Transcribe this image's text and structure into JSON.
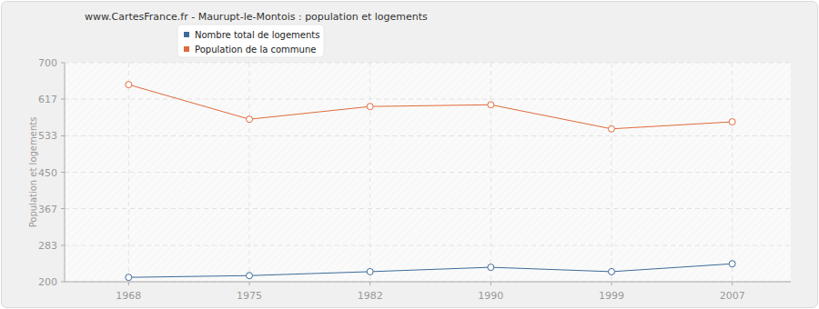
{
  "chart_data": {
    "type": "line",
    "title": "www.CartesFrance.fr - Maurupt-le-Montois : population et logements",
    "y_label": "Population et logements",
    "categories": [
      "1968",
      "1975",
      "1982",
      "1990",
      "1999",
      "2007"
    ],
    "series": [
      {
        "name": "Nombre total de logements",
        "color": "#3d6b99",
        "marker": "circle",
        "values": [
          210,
          214,
          223,
          233,
          223,
          241
        ]
      },
      {
        "name": "Population de la commune",
        "color": "#e06a3a",
        "marker": "circle",
        "values": [
          650,
          571,
          600,
          604,
          549,
          565
        ]
      }
    ],
    "ylim": [
      200,
      700
    ],
    "yticks": [
      200,
      283,
      367,
      450,
      533,
      617,
      700
    ],
    "grid": true,
    "legend": "top"
  }
}
